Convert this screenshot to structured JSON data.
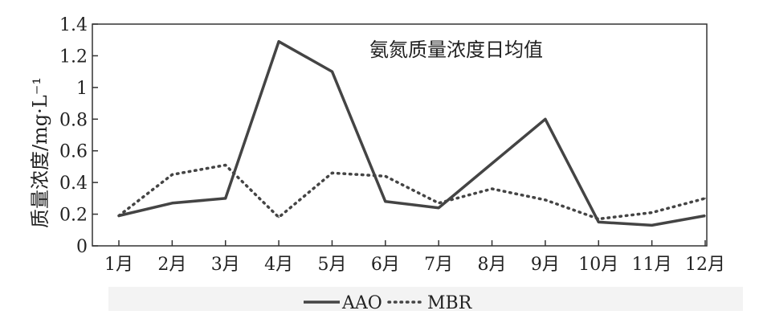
{
  "chart_data": {
    "type": "line",
    "title": "氨氮质量浓度日均值",
    "xlabel": "",
    "ylabel": "质量浓度/mg·L⁻¹",
    "categories": [
      "1月",
      "2月",
      "3月",
      "4月",
      "5月",
      "6月",
      "7月",
      "8月",
      "9月",
      "10月",
      "11月",
      "12月"
    ],
    "ylim": [
      0,
      1.4
    ],
    "yticks": [
      "0",
      "0.2",
      "0.4",
      "0.6",
      "0.8",
      "1",
      "1.2",
      "1.4"
    ],
    "grid": false,
    "legend_position": "bottom",
    "series": [
      {
        "name": "AAO",
        "style": "solid",
        "color": "#444444",
        "values": [
          0.19,
          0.27,
          0.3,
          1.29,
          1.1,
          0.28,
          0.24,
          0.52,
          0.8,
          0.15,
          0.13,
          0.19
        ]
      },
      {
        "name": "MBR",
        "style": "dotted",
        "color": "#444444",
        "values": [
          0.19,
          0.45,
          0.51,
          0.18,
          0.46,
          0.44,
          0.27,
          0.36,
          0.29,
          0.17,
          0.21,
          0.3
        ]
      }
    ]
  }
}
